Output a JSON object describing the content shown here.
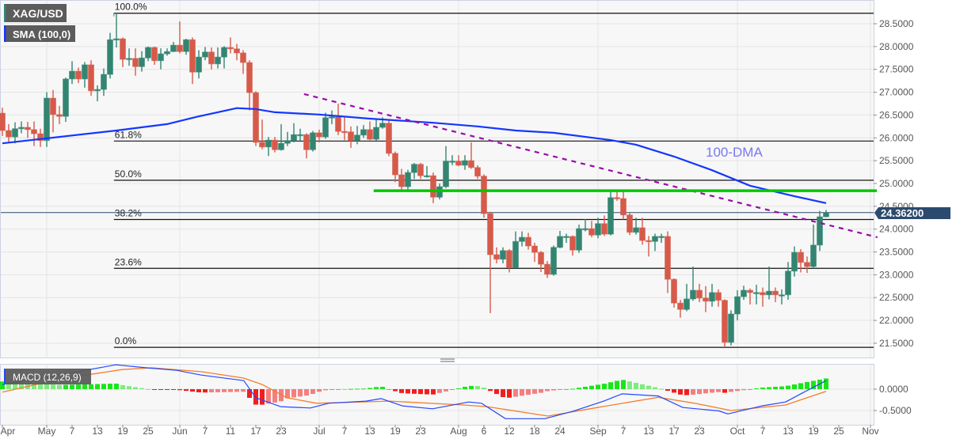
{
  "header": {
    "instrument": "XAG/USD",
    "sma_label": "SMA (100,0)",
    "macd_label": "MACD (12,26,9)",
    "annotation_dma": "100-DMA",
    "last_price_label": "24.36200"
  },
  "colors": {
    "up": "#338571",
    "down": "#d65a4a",
    "sma": "#1437ff",
    "macd": "#2448ff",
    "signal": "#f47d2b",
    "hist_up": "#19e619",
    "hist_down": "#f21d1d",
    "trendline": "#9b0aa8",
    "support": "#00c800",
    "fib": "#111111",
    "price_tag": "#2c4a6e",
    "annotation": "#7878ee"
  },
  "chart_data": {
    "type": "candlestick",
    "title": "",
    "y_axis": {
      "min": 21.3,
      "max": 28.9,
      "ticks": [
        "28.5000",
        "28.0000",
        "27.5000",
        "27.0000",
        "26.5000",
        "26.0000",
        "25.5000",
        "25.0000",
        "24.5000",
        "24.0000",
        "23.5000",
        "23.0000",
        "22.5000",
        "22.0000",
        "21.5000"
      ]
    },
    "x_ticks": [
      {
        "label": "Apr",
        "i": 0
      },
      {
        "label": "May",
        "i": 7
      },
      {
        "label": "7",
        "i": 11
      },
      {
        "label": "13",
        "i": 15
      },
      {
        "label": "19",
        "i": 19
      },
      {
        "label": "25",
        "i": 23
      },
      {
        "label": "Jun",
        "i": 28
      },
      {
        "label": "7",
        "i": 32
      },
      {
        "label": "11",
        "i": 36
      },
      {
        "label": "17",
        "i": 40
      },
      {
        "label": "23",
        "i": 44
      },
      {
        "label": "Jul",
        "i": 50
      },
      {
        "label": "7",
        "i": 54
      },
      {
        "label": "13",
        "i": 58
      },
      {
        "label": "19",
        "i": 62
      },
      {
        "label": "23",
        "i": 66
      },
      {
        "label": "Aug",
        "i": 72
      },
      {
        "label": "6",
        "i": 76
      },
      {
        "label": "12",
        "i": 80
      },
      {
        "label": "18",
        "i": 84
      },
      {
        "label": "24",
        "i": 88
      },
      {
        "label": "Sep",
        "i": 94
      },
      {
        "label": "7",
        "i": 98
      },
      {
        "label": "13",
        "i": 102
      },
      {
        "label": "17",
        "i": 106
      },
      {
        "label": "23",
        "i": 110
      },
      {
        "label": "Oct",
        "i": 116
      },
      {
        "label": "7",
        "i": 120
      },
      {
        "label": "13",
        "i": 124
      },
      {
        "label": "19",
        "i": 128
      },
      {
        "label": "25",
        "i": 132
      },
      {
        "label": "Nov",
        "i": 137
      }
    ],
    "month_gridlines": [
      7,
      28,
      50,
      72,
      94,
      116,
      137
    ],
    "open": [
      26.54,
      26.16,
      26.02,
      26.2,
      26.23,
      26.18,
      26.09,
      25.94,
      26.87,
      26.51,
      26.47,
      27.29,
      27.46,
      27.29,
      27.6,
      27.03,
      27.06,
      27.39,
      28.15,
      28.17,
      27.72,
      27.74,
      27.56,
      27.75,
      27.98,
      27.69,
      27.84,
      27.89,
      28.03,
      27.89,
      28.15,
      27.44,
      27.77,
      27.88,
      27.62,
      27.77,
      27.98,
      27.95,
      27.86,
      27.65,
      26.99,
      25.9,
      25.8,
      25.95,
      25.74,
      25.88,
      25.94,
      26.07,
      26.07,
      25.74,
      26.11,
      26.02,
      26.44,
      26.46,
      26.14,
      26.13,
      25.94,
      26.06,
      26.18,
      25.97,
      26.23,
      26.32,
      25.66,
      25.19,
      24.93,
      25.24,
      25.42,
      25.17,
      25.17,
      24.7,
      24.93,
      25.49,
      25.49,
      25.4,
      25.5,
      25.35,
      25.16,
      24.34,
      23.44,
      23.34,
      23.53,
      23.16,
      23.73,
      23.82,
      23.63,
      23.49,
      23.23,
      23.01,
      23.6,
      23.84,
      23.84,
      23.54,
      24.01,
      24.01,
      23.87,
      24.12,
      23.89,
      24.69,
      24.67,
      24.31,
      23.93,
      24.03,
      23.75,
      23.73,
      23.84,
      23.84,
      22.9,
      22.38,
      22.24,
      22.47,
      22.66,
      22.49,
      22.42,
      22.61,
      22.44,
      21.52,
      22.14,
      22.52,
      22.66,
      22.61,
      22.61,
      22.56,
      22.64,
      22.56,
      22.56,
      23.08,
      23.49,
      23.27,
      23.18,
      23.65,
      24.27
    ],
    "high": [
      26.66,
      26.3,
      26.34,
      26.36,
      26.35,
      26.36,
      26.2,
      27.0,
      27.05,
      26.7,
      27.32,
      27.68,
      27.54,
      27.66,
      27.7,
      27.15,
      27.52,
      28.3,
      28.73,
      28.2,
      27.96,
      27.96,
      27.9,
      28.0,
      28.0,
      27.96,
      27.96,
      28.1,
      28.55,
      28.17,
      28.2,
      27.92,
      27.99,
      27.98,
      27.98,
      28.01,
      28.2,
      28.06,
      27.92,
      27.7,
      27.02,
      26.4,
      26.02,
      26.02,
      26.3,
      26.13,
      26.32,
      26.2,
      26.1,
      26.15,
      26.18,
      26.55,
      26.6,
      26.75,
      26.45,
      26.25,
      26.26,
      26.28,
      26.36,
      26.4,
      26.45,
      26.4,
      25.7,
      25.32,
      25.3,
      25.45,
      25.45,
      25.38,
      25.24,
      25.0,
      25.82,
      25.62,
      25.62,
      25.62,
      25.9,
      25.4,
      25.2,
      24.38,
      23.6,
      23.6,
      23.56,
      23.95,
      23.95,
      23.92,
      23.7,
      23.52,
      23.3,
      23.64,
      23.96,
      23.9,
      23.86,
      24.1,
      24.22,
      24.18,
      24.25,
      24.3,
      24.85,
      24.85,
      24.85,
      24.35,
      24.25,
      24.25,
      23.85,
      23.9,
      23.9,
      23.95,
      22.92,
      22.45,
      22.8,
      23.18,
      22.8,
      22.75,
      22.8,
      22.68,
      22.46,
      22.22,
      22.66,
      22.76,
      22.7,
      22.78,
      22.72,
      23.18,
      22.72,
      22.68,
      23.28,
      23.62,
      23.56,
      23.4,
      24.1,
      24.4,
      24.42
    ],
    "low": [
      26.04,
      25.9,
      25.88,
      26.1,
      26.0,
      25.82,
      25.8,
      25.8,
      26.12,
      26.3,
      26.35,
      27.18,
      27.2,
      27.1,
      26.92,
      26.8,
      26.92,
      27.3,
      27.98,
      27.55,
      27.58,
      27.36,
      27.45,
      27.68,
      27.6,
      27.5,
      27.8,
      27.88,
      27.85,
      27.82,
      27.18,
      27.3,
      27.7,
      27.5,
      27.52,
      27.52,
      27.85,
      27.7,
      27.4,
      26.6,
      25.82,
      25.75,
      25.6,
      25.68,
      25.72,
      25.82,
      25.9,
      25.94,
      25.55,
      25.7,
      25.9,
      25.98,
      26.3,
      26.06,
      25.95,
      25.78,
      25.86,
      26.0,
      25.95,
      25.94,
      26.2,
      25.6,
      25.03,
      24.84,
      24.82,
      25.1,
      25.1,
      25.13,
      24.57,
      24.65,
      24.9,
      25.4,
      25.38,
      25.3,
      25.32,
      25.1,
      24.25,
      22.16,
      23.25,
      23.25,
      23.05,
      23.15,
      23.62,
      23.55,
      23.28,
      23.06,
      22.93,
      22.98,
      23.58,
      23.7,
      23.42,
      23.48,
      23.95,
      23.82,
      23.8,
      23.85,
      23.86,
      24.62,
      24.21,
      23.87,
      23.88,
      23.66,
      23.4,
      23.52,
      23.7,
      22.6,
      22.28,
      22.06,
      22.2,
      22.43,
      22.4,
      22.18,
      22.3,
      22.3,
      21.41,
      21.45,
      22.0,
      22.45,
      22.35,
      22.35,
      22.3,
      22.46,
      22.4,
      22.35,
      22.45,
      22.96,
      23.05,
      23.04,
      23.14,
      23.52,
      24.26
    ],
    "close": [
      26.16,
      26.02,
      26.2,
      26.23,
      26.18,
      26.09,
      25.94,
      26.87,
      26.51,
      26.47,
      27.29,
      27.46,
      27.29,
      27.6,
      27.03,
      27.06,
      27.39,
      28.15,
      28.17,
      27.72,
      27.74,
      27.56,
      27.75,
      27.98,
      27.69,
      27.84,
      27.89,
      28.03,
      27.89,
      28.15,
      27.44,
      27.77,
      27.88,
      27.62,
      27.77,
      27.98,
      27.95,
      27.86,
      27.65,
      26.99,
      25.9,
      25.8,
      25.95,
      25.74,
      25.88,
      25.94,
      26.07,
      26.07,
      25.74,
      26.11,
      26.02,
      26.44,
      26.46,
      26.14,
      26.13,
      25.94,
      26.06,
      26.18,
      25.97,
      26.23,
      26.32,
      25.66,
      25.19,
      24.93,
      25.24,
      25.42,
      25.17,
      25.17,
      24.7,
      24.93,
      25.49,
      25.49,
      25.4,
      25.5,
      25.35,
      25.16,
      24.34,
      23.44,
      23.34,
      23.53,
      23.16,
      23.73,
      23.82,
      23.63,
      23.49,
      23.23,
      23.01,
      23.6,
      23.84,
      23.84,
      23.54,
      24.01,
      24.01,
      23.87,
      24.12,
      23.89,
      24.69,
      24.67,
      24.31,
      23.93,
      24.03,
      23.75,
      23.73,
      23.84,
      23.84,
      22.9,
      22.38,
      22.24,
      22.47,
      22.66,
      22.49,
      22.42,
      22.61,
      22.44,
      21.52,
      22.14,
      22.52,
      22.66,
      22.61,
      22.61,
      22.56,
      22.64,
      22.56,
      22.56,
      23.08,
      23.49,
      23.27,
      23.18,
      23.65,
      24.27,
      24.36
    ],
    "sma_100": [
      [
        0,
        25.88
      ],
      [
        18,
        26.16
      ],
      [
        26,
        26.3
      ],
      [
        31,
        26.47
      ],
      [
        37,
        26.65
      ],
      [
        40,
        26.63
      ],
      [
        43,
        26.56
      ],
      [
        50,
        26.51
      ],
      [
        58,
        26.42
      ],
      [
        68,
        26.33
      ],
      [
        75,
        26.25
      ],
      [
        81,
        26.16
      ],
      [
        87,
        26.11
      ],
      [
        96,
        25.95
      ],
      [
        100,
        25.85
      ],
      [
        106,
        25.59
      ],
      [
        112,
        25.29
      ],
      [
        118,
        24.95
      ],
      [
        125,
        24.72
      ],
      [
        130,
        24.57
      ]
    ],
    "trendline": [
      [
        47.6,
        26.96
      ],
      [
        138.1,
        23.82
      ]
    ],
    "support_line": {
      "from_i": 58.6,
      "to_i": 138,
      "price": 24.84
    },
    "fibonacci": {
      "from_i": 17.6,
      "levels": [
        {
          "label": "100.0%",
          "price": 28.73
        },
        {
          "label": "61.8%",
          "price": 25.93
        },
        {
          "label": "50.0%",
          "price": 25.07
        },
        {
          "label": "38.2%",
          "price": 24.21
        },
        {
          "label": "23.6%",
          "price": 23.14
        },
        {
          "label": "0.0%",
          "price": 21.41
        }
      ]
    },
    "last_price": 24.362,
    "macd_panel": {
      "y_ticks": [
        {
          "label": "0.0000",
          "value": 0
        },
        {
          "label": "-0.5000",
          "value": -0.5
        }
      ],
      "macd": [
        [
          0,
          0.11
        ],
        [
          5.4,
          0.24
        ],
        [
          13.1,
          0.44
        ],
        [
          17.9,
          0.57
        ],
        [
          22.75,
          0.5
        ],
        [
          27.5,
          0.44
        ],
        [
          31.4,
          0.33
        ],
        [
          38.1,
          0.2
        ],
        [
          40,
          -0.2
        ],
        [
          43.9,
          -0.41
        ],
        [
          48.6,
          -0.44
        ],
        [
          51.5,
          -0.33
        ],
        [
          57.4,
          -0.28
        ],
        [
          59.8,
          -0.22
        ],
        [
          63.1,
          -0.39
        ],
        [
          67.9,
          -0.46
        ],
        [
          73.6,
          -0.3
        ],
        [
          75.6,
          -0.33
        ],
        [
          79.4,
          -0.69
        ],
        [
          85.6,
          -0.69
        ],
        [
          90,
          -0.52
        ],
        [
          94.9,
          -0.28
        ],
        [
          97.8,
          -0.11
        ],
        [
          103.5,
          -0.16
        ],
        [
          107.4,
          -0.43
        ],
        [
          113.1,
          -0.51
        ],
        [
          114.5,
          -0.58
        ],
        [
          119.9,
          -0.39
        ],
        [
          123.6,
          -0.3
        ],
        [
          126.5,
          -0.07
        ],
        [
          130,
          0.2
        ]
      ],
      "signal": [
        [
          0,
          -0.07
        ],
        [
          9.25,
          0.24
        ],
        [
          18.9,
          0.46
        ],
        [
          23.6,
          0.5
        ],
        [
          31.4,
          0.41
        ],
        [
          38.1,
          0.26
        ],
        [
          41,
          0.11
        ],
        [
          44.9,
          -0.2
        ],
        [
          49.6,
          -0.33
        ],
        [
          61.1,
          -0.28
        ],
        [
          72.75,
          -0.37
        ],
        [
          76.5,
          -0.41
        ],
        [
          86.1,
          -0.63
        ],
        [
          93.9,
          -0.43
        ],
        [
          103.5,
          -0.19
        ],
        [
          109.25,
          -0.33
        ],
        [
          115,
          -0.5
        ],
        [
          123.6,
          -0.37
        ],
        [
          130,
          -0.05
        ]
      ]
    }
  }
}
